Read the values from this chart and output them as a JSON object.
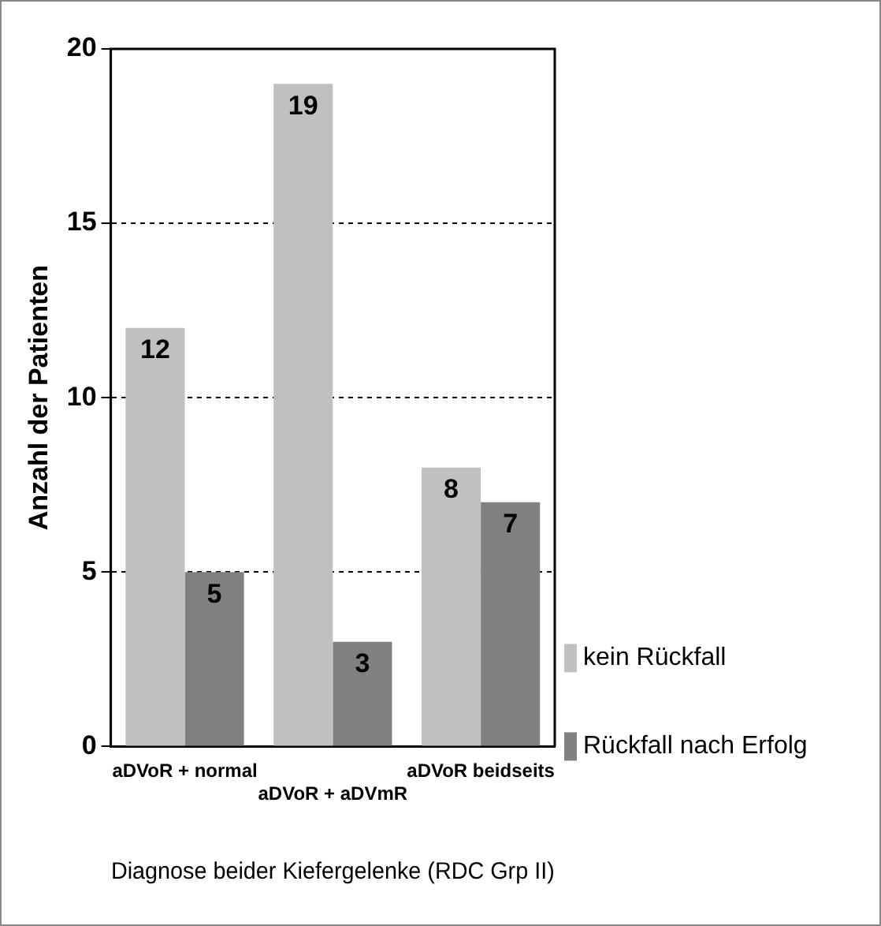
{
  "chart_data": {
    "type": "bar",
    "xlabel": "Diagnose beider Kiefergelenke (RDC Grp II)",
    "ylabel": "Anzahl der Patienten",
    "categories": [
      "aDVoR + normal",
      "aDVoR + aDVmR",
      "aDVoR beidseits"
    ],
    "series": [
      {
        "name": "kein Rückfall",
        "color": "#c0c0c0",
        "values": [
          12,
          19,
          8
        ]
      },
      {
        "name": "Rückfall nach Erfolg",
        "color": "#808080",
        "values": [
          5,
          3,
          7
        ]
      }
    ],
    "ylim": [
      0,
      20
    ],
    "yticks": [
      0,
      5,
      10,
      15,
      20
    ],
    "grid": "y",
    "legend": "bottom right",
    "data_labels": true
  }
}
